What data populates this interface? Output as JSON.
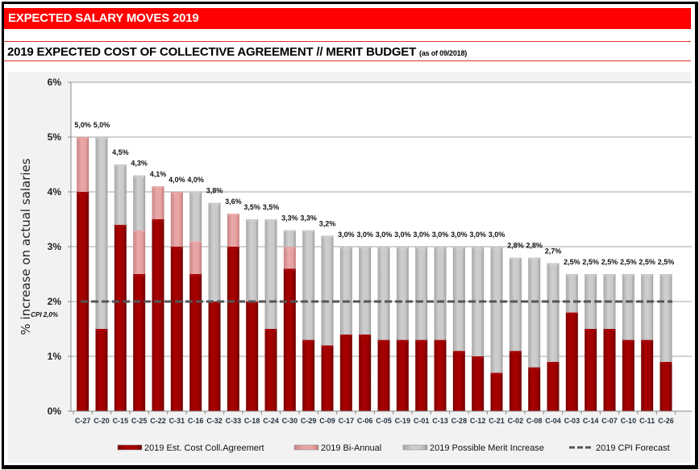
{
  "header": {
    "banner_title": "EXPECTED SALARY MOVES 2019",
    "subtitle": "2019 EXPECTED COST OF COLLECTIVE AGREEMENT // MERIT BUDGET",
    "subtitle_note": "(as of 09/2018)"
  },
  "chart_data": {
    "type": "bar",
    "stacked": true,
    "title": "2019 EXPECTED COST OF COLLECTIVE AGREEMENT // MERIT BUDGET",
    "xlabel": "",
    "ylabel": "% increase on actual salaries",
    "ylim": [
      0,
      6
    ],
    "yticks": [
      "0%",
      "1%",
      "2%",
      "3%",
      "4%",
      "5%",
      "6%"
    ],
    "ytick_values": [
      0,
      1,
      2,
      3,
      4,
      5,
      6
    ],
    "grid": true,
    "legend_position": "bottom",
    "categories": [
      "C-27",
      "C-20",
      "C-15",
      "C-25",
      "C-22",
      "C-31",
      "C-16",
      "C-32",
      "C-33",
      "C-18",
      "C-24",
      "C-30",
      "C-29",
      "C-09",
      "C-17",
      "C-06",
      "C-05",
      "C-19",
      "C-01",
      "C-13",
      "C-28",
      "C-12",
      "C-21",
      "C-02",
      "C-08",
      "C-04",
      "C-03",
      "C-14",
      "C-07",
      "C-10",
      "C-11",
      "C-26"
    ],
    "series": [
      {
        "name": "2019 Est. Cost Coll.Agreemert",
        "color": "#a00000",
        "values": [
          4.0,
          1.5,
          3.4,
          2.5,
          3.5,
          3.0,
          2.5,
          2.0,
          3.0,
          2.0,
          1.5,
          2.6,
          1.3,
          1.2,
          1.4,
          1.4,
          1.3,
          1.3,
          1.3,
          1.3,
          1.1,
          1.0,
          0.7,
          1.1,
          0.8,
          0.9,
          1.8,
          1.5,
          1.5,
          1.3,
          1.3,
          0.9
        ]
      },
      {
        "name": "2019 Bi-Annual",
        "color": "#e6a0a0",
        "values": [
          1.0,
          0,
          0,
          0.8,
          0.6,
          1.0,
          0.6,
          0,
          0.6,
          0,
          0,
          0.4,
          0,
          0,
          0,
          0,
          0,
          0,
          0,
          0,
          0,
          0,
          0,
          0,
          0,
          0,
          0,
          0,
          0,
          0,
          0,
          0
        ]
      },
      {
        "name": "2019 Possible Merit Increase",
        "color": "#c8c8c8",
        "values": [
          0,
          3.5,
          1.1,
          1.0,
          0,
          0,
          0.9,
          1.8,
          0,
          1.5,
          2.0,
          0.3,
          2.0,
          2.0,
          1.6,
          1.6,
          1.7,
          1.7,
          1.7,
          1.7,
          1.9,
          2.0,
          2.3,
          1.7,
          2.0,
          1.8,
          0.7,
          1.0,
          1.0,
          1.2,
          1.2,
          1.6
        ]
      }
    ],
    "totals": [
      5.0,
      5.0,
      4.5,
      4.3,
      4.1,
      4.0,
      4.0,
      3.8,
      3.6,
      3.5,
      3.5,
      3.3,
      3.3,
      3.2,
      3.0,
      3.0,
      3.0,
      3.0,
      3.0,
      3.0,
      3.0,
      3.0,
      3.0,
      2.8,
      2.8,
      2.7,
      2.5,
      2.5,
      2.5,
      2.5,
      2.5,
      2.5
    ],
    "data_labels": [
      "5,0%",
      "5,0%",
      "4,5%",
      "4,3%",
      "4,1%",
      "4,0%",
      "4,0%",
      "3,8%",
      "3,6%",
      "3,5%",
      "3,5%",
      "3,3%",
      "3,3%",
      "3,2%",
      "3,0%",
      "3,0%",
      "3,0%",
      "3,0%",
      "3,0%",
      "3,0%",
      "3,0%",
      "3,0%",
      "3,0%",
      "2,8%",
      "2,8%",
      "2,7%",
      "2,5%",
      "2,5%",
      "2,5%",
      "2,5%",
      "2,5%",
      "2,5%"
    ],
    "reference_line": {
      "name": "2019 CPI Forecast",
      "value": 2.0,
      "label": "CPI 2,0%",
      "color": "#555555",
      "style": "dashed"
    },
    "legend": [
      {
        "label": "2019 Est. Cost Coll.Agreemert",
        "type": "bar",
        "color": "#a00000"
      },
      {
        "label": "2019 Bi-Annual",
        "type": "bar",
        "color": "#e6a0a0"
      },
      {
        "label": "2019 Possible Merit Increase",
        "type": "bar",
        "color": "#c8c8c8"
      },
      {
        "label": "2019 CPI Forecast",
        "type": "dashed-line",
        "color": "#555555"
      }
    ]
  }
}
